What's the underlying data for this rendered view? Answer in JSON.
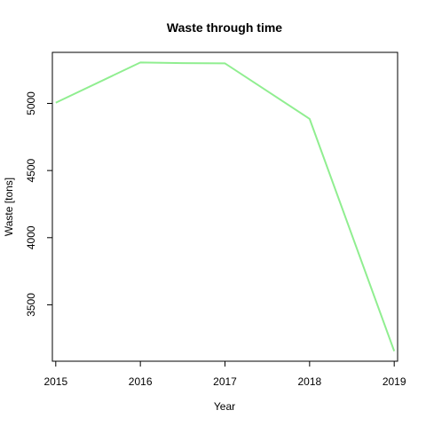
{
  "chart_data": {
    "type": "line",
    "title": "Waste through time",
    "xlabel": "Year",
    "ylabel": "Waste [tons]",
    "x": [
      2015,
      2016,
      2016.5,
      2017,
      2018,
      2019
    ],
    "series": [
      {
        "values": [
          5005,
          5305,
          5300,
          5298,
          4885,
          3155
        ],
        "color": "#90ee90"
      }
    ],
    "x_ticks": [
      2015,
      2016,
      2017,
      2018,
      2019
    ],
    "y_ticks": [
      3500,
      4000,
      4500,
      5000
    ],
    "xlim": [
      2014.96,
      2019.04
    ],
    "ylim": [
      3080,
      5380
    ],
    "grid": false,
    "legend": "none"
  }
}
